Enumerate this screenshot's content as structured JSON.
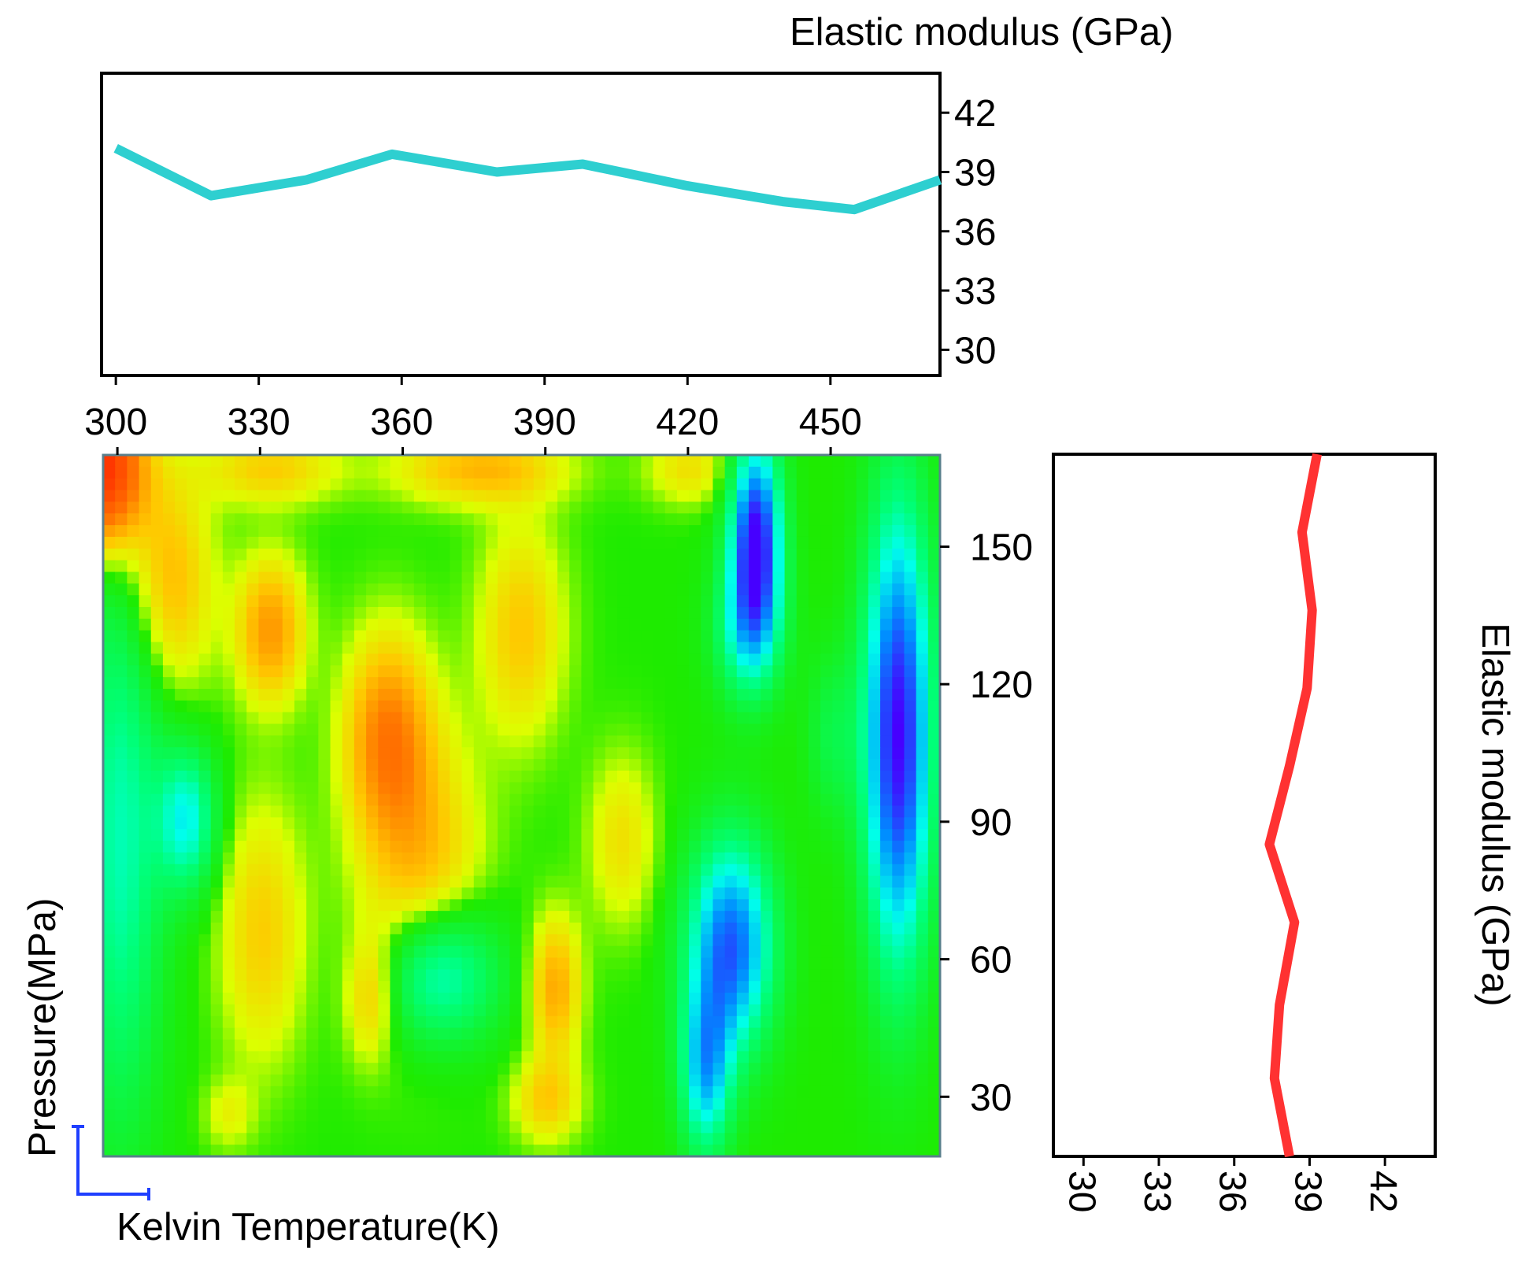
{
  "chart_data": [
    {
      "type": "line",
      "name": "top-elastic-vs-temperature",
      "ylabel": "Elastic modulus (GPa)",
      "x": [
        300,
        320,
        340,
        358,
        380,
        398,
        420,
        440,
        455,
        475
      ],
      "values": [
        40.2,
        37.8,
        38.6,
        39.9,
        39.0,
        39.4,
        38.3,
        37.5,
        37.1,
        38.6
      ],
      "xlim": [
        297,
        473
      ],
      "ylim": [
        28.7,
        44.0
      ],
      "x_ticks": [
        "300",
        "330",
        "360",
        "390",
        "420",
        "450"
      ],
      "y_ticks": [
        "42",
        "39",
        "36",
        "33",
        "30"
      ],
      "color": "#2ecfd0"
    },
    {
      "type": "heatmap",
      "name": "pressure-temperature-contour",
      "xlabel": "Kelvin Temperature(K)",
      "ylabel": "Pressure(MPa)",
      "xlim": [
        297,
        473
      ],
      "ylim": [
        17,
        170
      ],
      "y_ticks": [
        "150",
        "120",
        "90",
        "60",
        "30"
      ],
      "colormap": "jet-like"
    },
    {
      "type": "line",
      "name": "right-elastic-vs-pressure",
      "ylabel": "Elastic modulus (GPa)",
      "pressure": [
        17,
        34,
        50,
        68,
        85,
        102,
        119,
        136,
        153,
        170
      ],
      "values": [
        38.2,
        37.6,
        37.8,
        38.4,
        37.4,
        38.2,
        38.9,
        39.1,
        38.7,
        39.3
      ],
      "xlim": [
        28.8,
        44.0
      ],
      "ylim": [
        17,
        170
      ],
      "x_ticks": [
        "30",
        "33",
        "36",
        "39",
        "42"
      ],
      "color": "#ff3232"
    }
  ],
  "colors": {
    "axis": "#000000",
    "corner_arrows": "#1f3fff"
  }
}
